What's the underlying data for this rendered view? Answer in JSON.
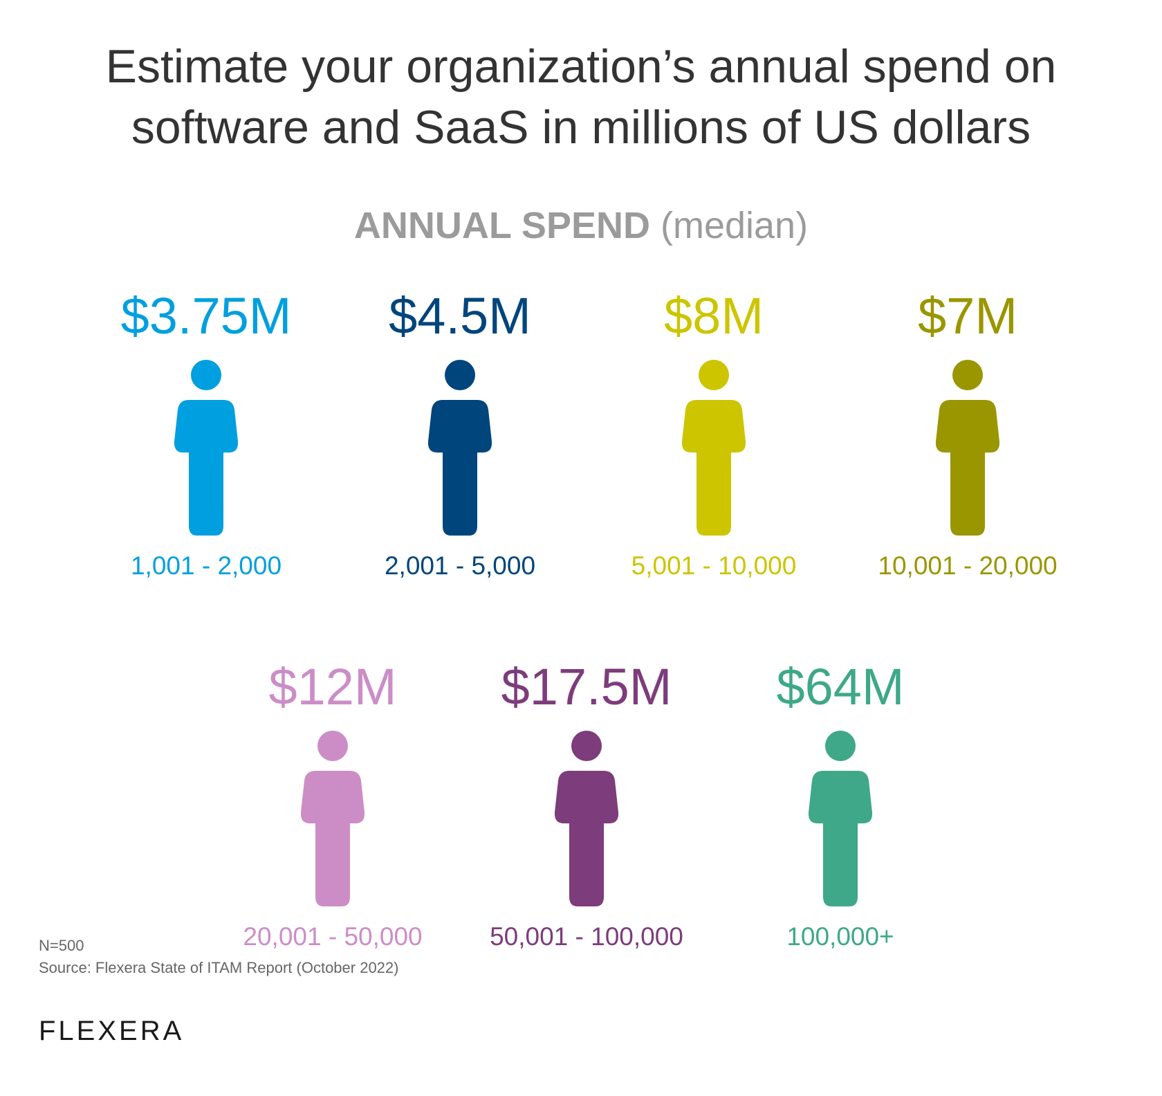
{
  "title": {
    "line1": "Estimate your organization’s annual spend on",
    "line2": "software and SaaS in millions of US dollars"
  },
  "subtitle": {
    "bold": "ANNUAL SPEND",
    "light": "(median)"
  },
  "chart_data": {
    "type": "pictogram",
    "title": "Estimate your organization’s annual spend on software and SaaS in millions of US dollars",
    "subtitle": "ANNUAL SPEND (median)",
    "unit": "millions of US dollars",
    "categories": [
      "1,001 - 2,000",
      "2,001 - 5,000",
      "5,001 - 10,000",
      "10,001 - 20,000",
      "20,001 - 50,000",
      "50,001 - 100,000",
      "100,000+"
    ],
    "values": [
      3.75,
      4.5,
      8,
      7,
      12,
      17.5,
      64
    ],
    "items": [
      {
        "value_label": "$3.75M",
        "value": 3.75,
        "range": "1,001 - 2,000",
        "color": "#009FDF"
      },
      {
        "value_label": "$4.5M",
        "value": 4.5,
        "range": "2,001 - 5,000",
        "color": "#00457C"
      },
      {
        "value_label": "$8M",
        "value": 8,
        "range": "5,001 - 10,000",
        "color": "#CCC500"
      },
      {
        "value_label": "$7M",
        "value": 7,
        "range": "10,001 - 20,000",
        "color": "#9A9600"
      },
      {
        "value_label": "$12M",
        "value": 12,
        "range": "20,001 - 50,000",
        "color": "#CC8DC7"
      },
      {
        "value_label": "$17.5M",
        "value": 17.5,
        "range": "50,001 - 100,000",
        "color": "#7D3C7B"
      },
      {
        "value_label": "$64M",
        "value": 64,
        "range": "100,000+",
        "color": "#3EA888"
      }
    ]
  },
  "footer": {
    "n": "N=500",
    "source": "Source: Flexera State of ITAM Report (October 2022)",
    "logo": "FLEXERA"
  }
}
